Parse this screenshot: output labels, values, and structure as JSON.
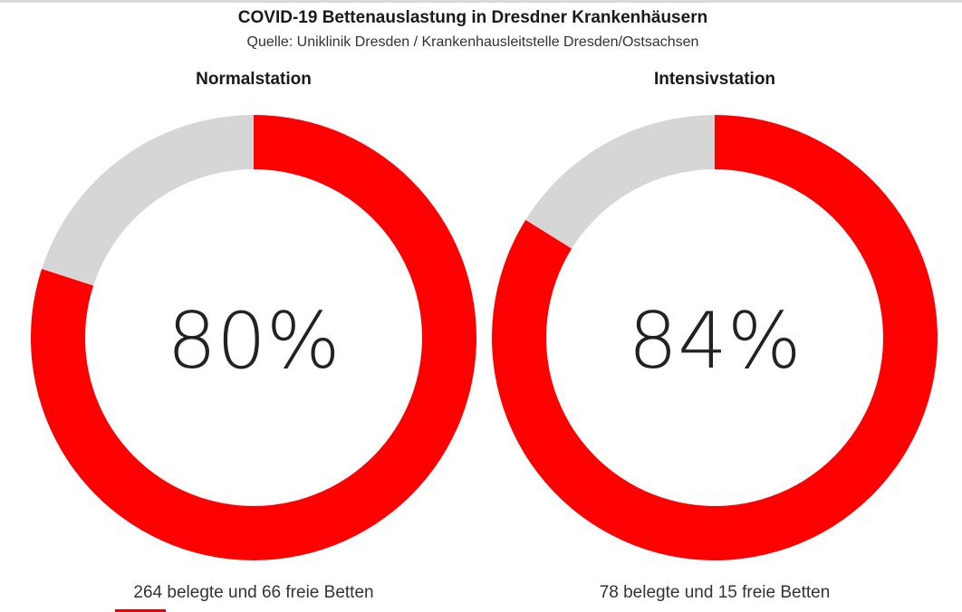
{
  "title": "COVID-19 Bettenauslastung in Dresdner Krankenhäusern",
  "subtitle": "Quelle: Uniklinik Dresden / Krankenhausleitstelle Dresden/Ostsachsen",
  "colors": {
    "occupied": "#ff0000",
    "free": "#d6d6d6"
  },
  "chart_data": [
    {
      "type": "pie",
      "title": "Normalstation",
      "labels": [
        "belegt",
        "frei"
      ],
      "values": [
        264,
        66
      ],
      "center_label": "80%",
      "caption": "264 belegte und 66 freie Betten"
    },
    {
      "type": "pie",
      "title": "Intensivstation",
      "labels": [
        "belegt",
        "frei"
      ],
      "values": [
        78,
        15
      ],
      "center_label": "84%",
      "caption": "78 belegte und 15 freie Betten"
    }
  ]
}
